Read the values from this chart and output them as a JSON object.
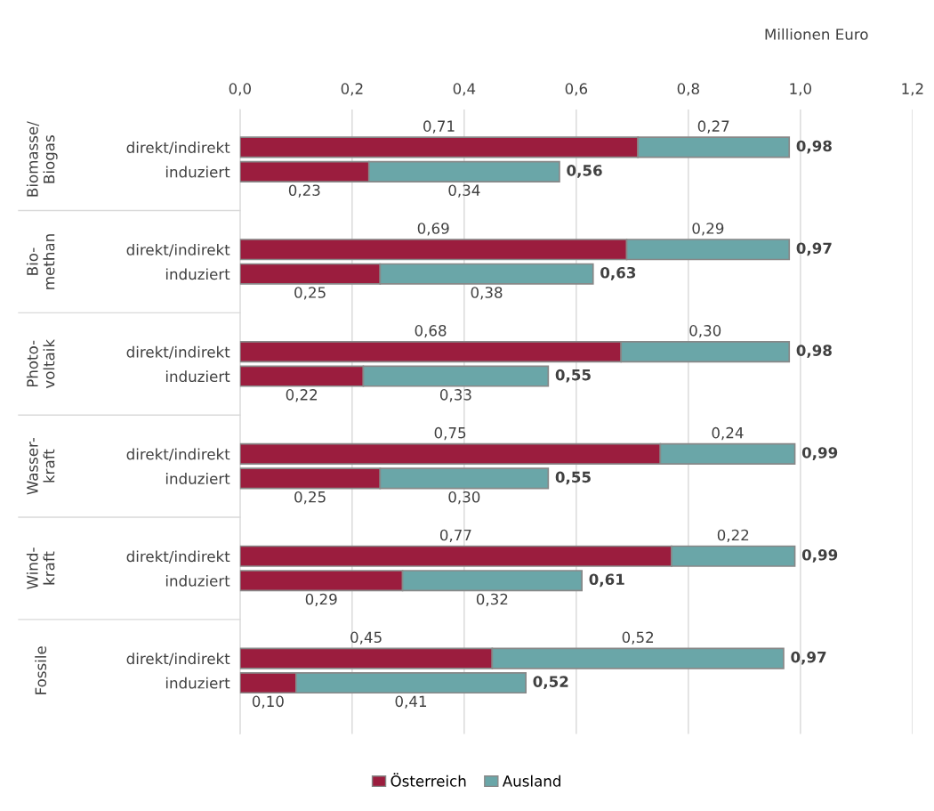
{
  "chart_data": {
    "type": "bar",
    "orientation": "horizontal",
    "stacked": true,
    "xlabel": "Millionen Euro",
    "categories": [
      "direkt/indirekt",
      "induziert",
      "direkt/indirekt",
      "induziert",
      "direkt/indirekt",
      "induziert",
      "direkt/indirekt",
      "induziert",
      "direkt/indirekt",
      "induziert",
      "direkt/indirekt",
      "induziert"
    ],
    "annotations": [
      "Biomasse/\nBiogas",
      "Bio-\nmethan",
      "Photo-\nvoltaik",
      "Wasser-\nkraft",
      "Wind-\nkraft",
      "Fossile"
    ],
    "series": [
      {
        "name": "Österreich",
        "color": "#9b1d3e",
        "values": [
          0.71,
          0.23,
          0.69,
          0.25,
          0.68,
          0.22,
          0.75,
          0.25,
          0.77,
          0.29,
          0.45,
          0.1
        ],
        "value_labels": [
          "0,71",
          "0,23",
          "0,69",
          "0,25",
          "0,68",
          "0,22",
          "0,75",
          "0,25",
          "0,77",
          "0,29",
          "0,45",
          "0,10"
        ]
      },
      {
        "name": "Ausland",
        "color": "#6aa6a8",
        "values": [
          0.27,
          0.34,
          0.29,
          0.38,
          0.3,
          0.33,
          0.24,
          0.3,
          0.22,
          0.32,
          0.52,
          0.41
        ],
        "value_labels": [
          "0,27",
          "0,34",
          "0,29",
          "0,38",
          "0,30",
          "0,33",
          "0,24",
          "0,30",
          "0,22",
          "0,32",
          "0,52",
          "0,41"
        ]
      }
    ],
    "totals": [
      "0,98",
      "0,56",
      "0,97",
      "0,63",
      "0,98",
      "0,55",
      "0,99",
      "0,55",
      "0,99",
      "0,61",
      "0,97",
      "0,52"
    ],
    "xlim": [
      0,
      1.2
    ],
    "xticks": [
      {
        "value": 0,
        "label": "0,0"
      },
      {
        "value": 0.2,
        "label": "0,2"
      },
      {
        "value": 0.4,
        "label": "0,4"
      },
      {
        "value": 0.6,
        "label": "0,6"
      },
      {
        "value": 0.8,
        "label": "0,8"
      },
      {
        "value": 1.0,
        "label": "1,0"
      },
      {
        "value": 1.2,
        "label": "1,2"
      }
    ],
    "grid": "x",
    "legend": "bottom"
  }
}
